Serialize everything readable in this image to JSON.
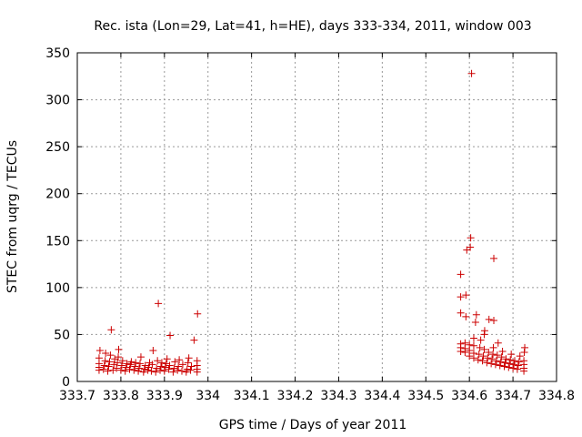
{
  "chart_data": {
    "type": "scatter",
    "title": "Rec. ista (Lon=29, Lat=41, h=HE), days 333-334, 2011, window 003",
    "xlabel": "GPS time / Days of year 2011",
    "ylabel": "STEC from uqrg / TECUs",
    "xlim": [
      333.7,
      334.8
    ],
    "ylim": [
      0,
      350
    ],
    "x_ticks": [
      "333.7",
      "333.8",
      "333.9",
      "334",
      "334.1",
      "334.2",
      "334.3",
      "334.4",
      "334.5",
      "334.6",
      "334.7",
      "334.8"
    ],
    "y_ticks": [
      "0",
      "50",
      "100",
      "150",
      "200",
      "250",
      "300",
      "350"
    ],
    "grid": true,
    "legend": "none",
    "marker": "plus",
    "marker_color": "#cc0000",
    "series": [
      {
        "values": [
          {
            "x": 333.75,
            "y": 12
          },
          {
            "x": 333.75,
            "y": 15
          },
          {
            "x": 333.75,
            "y": 19
          },
          {
            "x": 333.75,
            "y": 25
          },
          {
            "x": 333.752,
            "y": 33
          },
          {
            "x": 333.76,
            "y": 13
          },
          {
            "x": 333.762,
            "y": 17
          },
          {
            "x": 333.764,
            "y": 22
          },
          {
            "x": 333.765,
            "y": 30
          },
          {
            "x": 333.77,
            "y": 11
          },
          {
            "x": 333.772,
            "y": 16
          },
          {
            "x": 333.774,
            "y": 21
          },
          {
            "x": 333.776,
            "y": 28
          },
          {
            "x": 333.778,
            "y": 55
          },
          {
            "x": 333.782,
            "y": 12
          },
          {
            "x": 333.784,
            "y": 18
          },
          {
            "x": 333.786,
            "y": 24
          },
          {
            "x": 333.79,
            "y": 14
          },
          {
            "x": 333.792,
            "y": 20
          },
          {
            "x": 333.794,
            "y": 26
          },
          {
            "x": 333.795,
            "y": 34
          },
          {
            "x": 333.8,
            "y": 12
          },
          {
            "x": 333.802,
            "y": 17
          },
          {
            "x": 333.804,
            "y": 22
          },
          {
            "x": 333.81,
            "y": 11
          },
          {
            "x": 333.812,
            "y": 15
          },
          {
            "x": 333.814,
            "y": 19
          },
          {
            "x": 333.82,
            "y": 13
          },
          {
            "x": 333.822,
            "y": 18
          },
          {
            "x": 333.824,
            "y": 21
          },
          {
            "x": 333.83,
            "y": 12
          },
          {
            "x": 333.832,
            "y": 16
          },
          {
            "x": 333.834,
            "y": 20
          },
          {
            "x": 333.84,
            "y": 11
          },
          {
            "x": 333.842,
            "y": 14
          },
          {
            "x": 333.844,
            "y": 19
          },
          {
            "x": 333.846,
            "y": 26
          },
          {
            "x": 333.852,
            "y": 10
          },
          {
            "x": 333.854,
            "y": 13
          },
          {
            "x": 333.856,
            "y": 17
          },
          {
            "x": 333.862,
            "y": 12
          },
          {
            "x": 333.864,
            "y": 15
          },
          {
            "x": 333.866,
            "y": 20
          },
          {
            "x": 333.87,
            "y": 11
          },
          {
            "x": 333.872,
            "y": 18
          },
          {
            "x": 333.874,
            "y": 33
          },
          {
            "x": 333.88,
            "y": 10
          },
          {
            "x": 333.882,
            "y": 14
          },
          {
            "x": 333.884,
            "y": 22
          },
          {
            "x": 333.886,
            "y": 83
          },
          {
            "x": 333.89,
            "y": 12
          },
          {
            "x": 333.892,
            "y": 16
          },
          {
            "x": 333.894,
            "y": 20
          },
          {
            "x": 333.9,
            "y": 11
          },
          {
            "x": 333.902,
            "y": 15
          },
          {
            "x": 333.904,
            "y": 19
          },
          {
            "x": 333.906,
            "y": 24
          },
          {
            "x": 333.91,
            "y": 13
          },
          {
            "x": 333.912,
            "y": 17
          },
          {
            "x": 333.913,
            "y": 49
          },
          {
            "x": 333.92,
            "y": 10
          },
          {
            "x": 333.922,
            "y": 14
          },
          {
            "x": 333.924,
            "y": 21
          },
          {
            "x": 333.93,
            "y": 12
          },
          {
            "x": 333.932,
            "y": 16
          },
          {
            "x": 333.934,
            "y": 23
          },
          {
            "x": 333.94,
            "y": 11
          },
          {
            "x": 333.942,
            "y": 18
          },
          {
            "x": 333.95,
            "y": 10
          },
          {
            "x": 333.952,
            "y": 13
          },
          {
            "x": 333.954,
            "y": 20
          },
          {
            "x": 333.956,
            "y": 25
          },
          {
            "x": 333.96,
            "y": 12
          },
          {
            "x": 333.962,
            "y": 16
          },
          {
            "x": 333.968,
            "y": 44
          },
          {
            "x": 333.975,
            "y": 10
          },
          {
            "x": 333.975,
            "y": 13
          },
          {
            "x": 333.975,
            "y": 17
          },
          {
            "x": 333.975,
            "y": 22
          },
          {
            "x": 333.976,
            "y": 72
          },
          {
            "x": 334.58,
            "y": 32
          },
          {
            "x": 334.58,
            "y": 36
          },
          {
            "x": 334.58,
            "y": 40
          },
          {
            "x": 334.58,
            "y": 73
          },
          {
            "x": 334.58,
            "y": 90
          },
          {
            "x": 334.58,
            "y": 114
          },
          {
            "x": 334.59,
            "y": 31
          },
          {
            "x": 334.59,
            "y": 35
          },
          {
            "x": 334.59,
            "y": 41
          },
          {
            "x": 334.592,
            "y": 69
          },
          {
            "x": 334.592,
            "y": 92
          },
          {
            "x": 334.594,
            "y": 140
          },
          {
            "x": 334.6,
            "y": 27
          },
          {
            "x": 334.6,
            "y": 33
          },
          {
            "x": 334.6,
            "y": 39
          },
          {
            "x": 334.602,
            "y": 143
          },
          {
            "x": 334.603,
            "y": 153
          },
          {
            "x": 334.605,
            "y": 328
          },
          {
            "x": 334.61,
            "y": 25
          },
          {
            "x": 334.61,
            "y": 30
          },
          {
            "x": 334.61,
            "y": 38
          },
          {
            "x": 334.61,
            "y": 46
          },
          {
            "x": 334.614,
            "y": 63
          },
          {
            "x": 334.616,
            "y": 71
          },
          {
            "x": 334.62,
            "y": 23
          },
          {
            "x": 334.622,
            "y": 29
          },
          {
            "x": 334.624,
            "y": 36
          },
          {
            "x": 334.626,
            "y": 44
          },
          {
            "x": 334.63,
            "y": 22
          },
          {
            "x": 334.632,
            "y": 27
          },
          {
            "x": 334.634,
            "y": 34
          },
          {
            "x": 334.634,
            "y": 50
          },
          {
            "x": 334.635,
            "y": 54
          },
          {
            "x": 334.64,
            "y": 20
          },
          {
            "x": 334.642,
            "y": 25
          },
          {
            "x": 334.644,
            "y": 31
          },
          {
            "x": 334.645,
            "y": 66
          },
          {
            "x": 334.65,
            "y": 19
          },
          {
            "x": 334.652,
            "y": 24
          },
          {
            "x": 334.654,
            "y": 29
          },
          {
            "x": 334.655,
            "y": 36
          },
          {
            "x": 334.656,
            "y": 65
          },
          {
            "x": 334.656,
            "y": 131
          },
          {
            "x": 334.66,
            "y": 18
          },
          {
            "x": 334.662,
            "y": 22
          },
          {
            "x": 334.664,
            "y": 28
          },
          {
            "x": 334.666,
            "y": 41
          },
          {
            "x": 334.67,
            "y": 17
          },
          {
            "x": 334.672,
            "y": 21
          },
          {
            "x": 334.674,
            "y": 26
          },
          {
            "x": 334.676,
            "y": 32
          },
          {
            "x": 334.68,
            "y": 16
          },
          {
            "x": 334.682,
            "y": 20
          },
          {
            "x": 334.684,
            "y": 24
          },
          {
            "x": 334.69,
            "y": 15
          },
          {
            "x": 334.692,
            "y": 19
          },
          {
            "x": 334.694,
            "y": 23
          },
          {
            "x": 334.696,
            "y": 29
          },
          {
            "x": 334.7,
            "y": 14
          },
          {
            "x": 334.702,
            "y": 18
          },
          {
            "x": 334.704,
            "y": 22
          },
          {
            "x": 334.71,
            "y": 13
          },
          {
            "x": 334.712,
            "y": 17
          },
          {
            "x": 334.714,
            "y": 21
          },
          {
            "x": 334.716,
            "y": 27
          },
          {
            "x": 334.725,
            "y": 11
          },
          {
            "x": 334.725,
            "y": 14
          },
          {
            "x": 334.725,
            "y": 18
          },
          {
            "x": 334.725,
            "y": 22
          },
          {
            "x": 334.726,
            "y": 31
          },
          {
            "x": 334.727,
            "y": 36
          }
        ]
      }
    ]
  }
}
